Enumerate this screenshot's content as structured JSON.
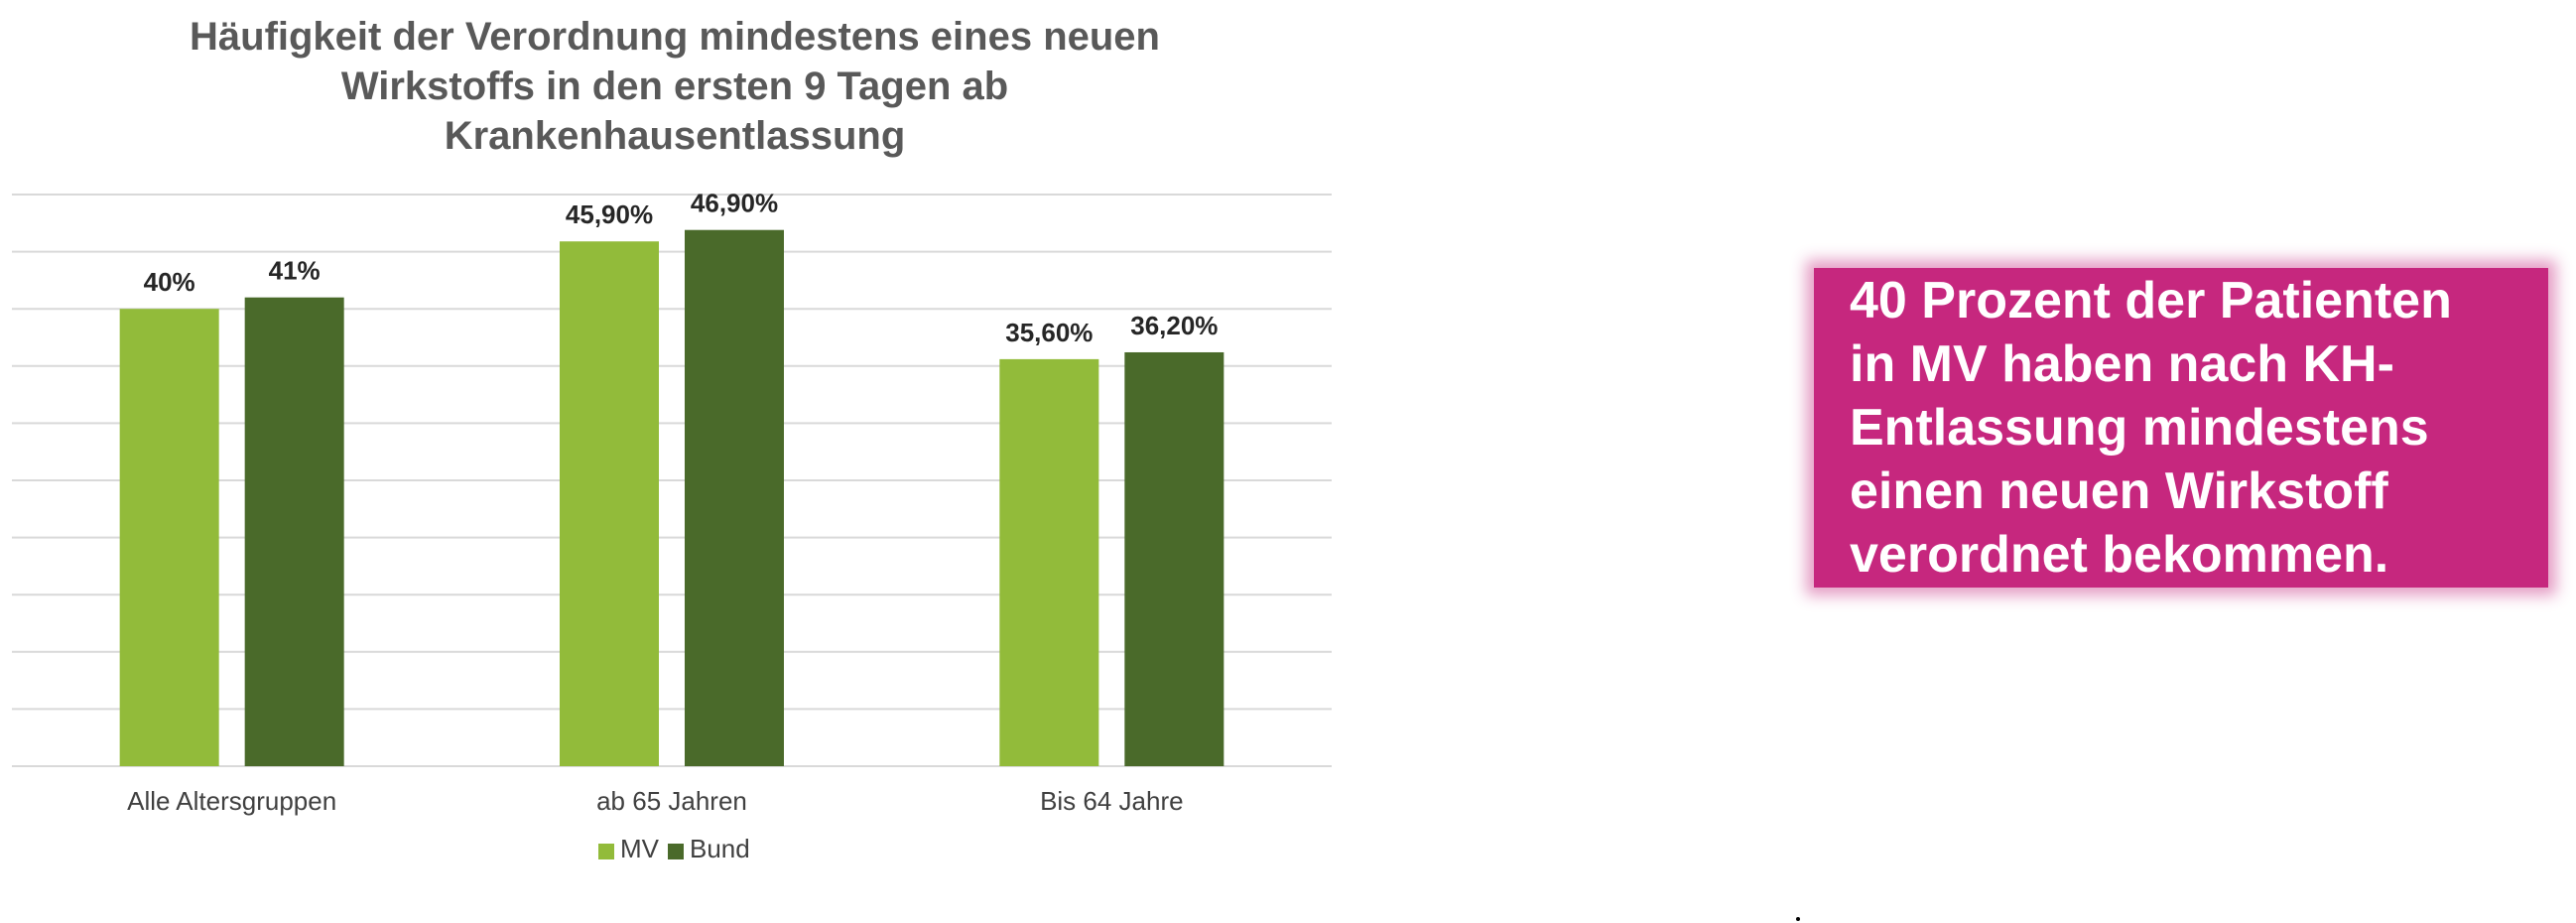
{
  "chart_data": {
    "type": "bar",
    "title": "Häufigkeit der Verordnung mindestens eines neuen Wirkstoffs in den ersten 9 Tagen ab Krankenhausentlassung",
    "title_lines": [
      "Häufigkeit der Verordnung mindestens eines neuen",
      "Wirkstoffs in den ersten 9 Tagen ab",
      "Krankenhausentlassung"
    ],
    "categories": [
      "Alle Altersgruppen",
      "ab 65 Jahren",
      "Bis 64 Jahre"
    ],
    "series": [
      {
        "name": "MV",
        "color": "#92bb3a",
        "values": [
          40.0,
          45.9,
          35.6
        ],
        "labels": [
          "40%",
          "45,90%",
          "35,60%"
        ]
      },
      {
        "name": "Bund",
        "color": "#4a6a2a",
        "values": [
          41.0,
          46.9,
          36.2
        ],
        "labels": [
          "41%",
          "46,90%",
          "36,20%"
        ]
      }
    ],
    "ylim": [
      0,
      50
    ],
    "ytick_step": 5,
    "grid": true,
    "show_y_axis_labels": false,
    "xlabel": "",
    "ylabel": "",
    "legend_position": "bottom-center"
  },
  "callout": {
    "text": "40 Prozent der Patienten in MV haben nach KH-Entlassung mindestens einen neuen Wirkstoff verordnet bekommen.",
    "lines": [
      "40 Prozent der Patienten",
      "in MV haben nach KH-",
      "Entlassung mindestens",
      "einen neuen Wirkstoff",
      "verordnet bekommen."
    ],
    "background": "#c6277e",
    "text_color": "#ffffff"
  },
  "colors": {
    "grid": "#d9d9d9",
    "axis_text": "#404040",
    "label_text": "#262626",
    "title_text": "#595959"
  }
}
